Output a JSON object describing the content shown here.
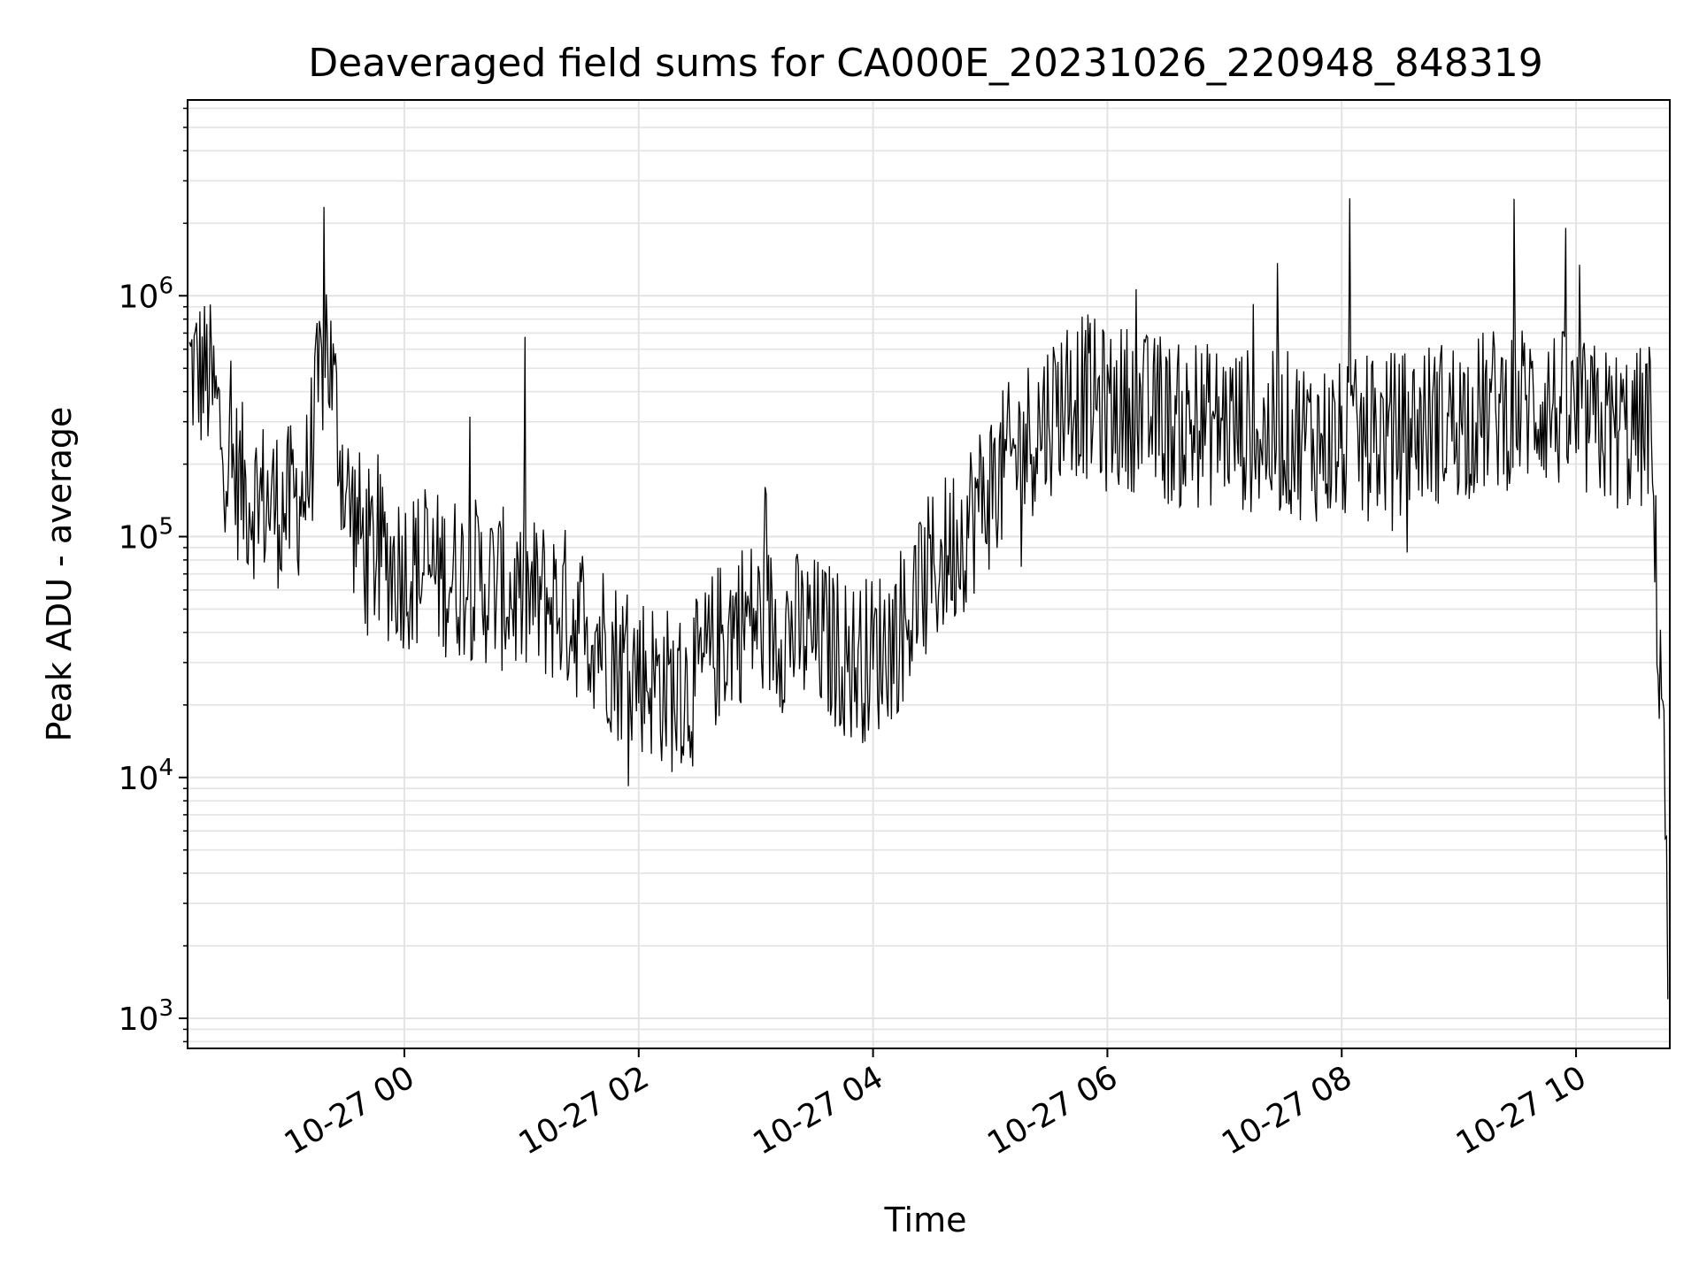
{
  "chart_data": {
    "type": "line",
    "title": "Deaveraged field sums for CA000E_20231026_220948_848319",
    "xlabel": "Time",
    "ylabel": "Peak ADU - average",
    "yscale": "log",
    "ylim": [
      750,
      6500000
    ],
    "xlim": [
      "2023-10-26T22:09",
      "2023-10-27T10:48"
    ],
    "grid": true,
    "line_color": "#000000",
    "x_ticks": [
      {
        "t": "2023-10-27T00:00",
        "label": "10-27 00"
      },
      {
        "t": "2023-10-27T02:00",
        "label": "10-27 02"
      },
      {
        "t": "2023-10-27T04:00",
        "label": "10-27 04"
      },
      {
        "t": "2023-10-27T06:00",
        "label": "10-27 06"
      },
      {
        "t": "2023-10-27T08:00",
        "label": "10-27 08"
      },
      {
        "t": "2023-10-27T10:00",
        "label": "10-27 10"
      }
    ],
    "y_ticks": [
      {
        "value": 1000,
        "base": "10",
        "exp": "3"
      },
      {
        "value": 10000,
        "base": "10",
        "exp": "4"
      },
      {
        "value": 100000,
        "base": "10",
        "exp": "5"
      },
      {
        "value": 1000000,
        "base": "10",
        "exp": "6"
      }
    ],
    "series": [
      {
        "x": [
          "2023-10-26T22:10",
          "2023-10-26T22:20",
          "2023-10-26T22:30",
          "2023-10-26T22:40",
          "2023-10-26T22:50",
          "2023-10-26T23:00",
          "2023-10-26T23:10",
          "2023-10-26T23:20",
          "2023-10-26T23:30",
          "2023-10-26T23:40",
          "2023-10-26T23:50",
          "2023-10-27T00:00",
          "2023-10-27T00:10",
          "2023-10-27T00:20",
          "2023-10-27T00:30",
          "2023-10-27T00:40",
          "2023-10-27T00:50",
          "2023-10-27T01:00",
          "2023-10-27T01:10",
          "2023-10-27T01:20",
          "2023-10-27T01:30",
          "2023-10-27T01:40",
          "2023-10-27T01:50",
          "2023-10-27T02:00",
          "2023-10-27T02:10",
          "2023-10-27T02:20",
          "2023-10-27T02:30",
          "2023-10-27T02:40",
          "2023-10-27T02:50",
          "2023-10-27T03:00",
          "2023-10-27T03:10",
          "2023-10-27T03:20",
          "2023-10-27T03:30",
          "2023-10-27T03:40",
          "2023-10-27T03:50",
          "2023-10-27T04:00",
          "2023-10-27T04:10",
          "2023-10-27T04:20",
          "2023-10-27T04:30",
          "2023-10-27T04:40",
          "2023-10-27T04:50",
          "2023-10-27T05:00",
          "2023-10-27T05:10",
          "2023-10-27T05:20",
          "2023-10-27T05:30",
          "2023-10-27T05:40",
          "2023-10-27T05:50",
          "2023-10-27T06:00",
          "2023-10-27T06:10",
          "2023-10-27T06:20",
          "2023-10-27T06:30",
          "2023-10-27T06:40",
          "2023-10-27T06:50",
          "2023-10-27T07:00",
          "2023-10-27T07:10",
          "2023-10-27T07:20",
          "2023-10-27T07:30",
          "2023-10-27T07:40",
          "2023-10-27T07:50",
          "2023-10-27T08:00",
          "2023-10-27T08:10",
          "2023-10-27T08:20",
          "2023-10-27T08:30",
          "2023-10-27T08:40",
          "2023-10-27T08:50",
          "2023-10-27T09:00",
          "2023-10-27T09:10",
          "2023-10-27T09:20",
          "2023-10-27T09:30",
          "2023-10-27T09:40",
          "2023-10-27T09:50",
          "2023-10-27T10:00",
          "2023-10-27T10:10",
          "2023-10-27T10:20",
          "2023-10-27T10:30",
          "2023-10-27T10:38",
          "2023-10-27T10:42",
          "2023-10-27T10:45",
          "2023-10-27T10:47"
        ],
        "y": [
          500000,
          450000,
          200000,
          150000,
          140000,
          130000,
          160000,
          700000,
          150000,
          90000,
          80000,
          75000,
          72000,
          70000,
          68000,
          65000,
          60000,
          55000,
          55000,
          52000,
          45000,
          40000,
          30000,
          28000,
          25000,
          22000,
          25000,
          35000,
          45000,
          45000,
          42000,
          40000,
          38000,
          35000,
          30000,
          32000,
          38000,
          50000,
          70000,
          90000,
          120000,
          160000,
          200000,
          260000,
          320000,
          400000,
          380000,
          330000,
          350000,
          320000,
          300000,
          280000,
          290000,
          300000,
          280000,
          260000,
          270000,
          260000,
          250000,
          240000,
          250000,
          260000,
          270000,
          290000,
          300000,
          310000,
          320000,
          340000,
          350000,
          360000,
          340000,
          300000,
          290000,
          280000,
          270000,
          300000,
          40000,
          20000,
          1200
        ]
      }
    ]
  }
}
